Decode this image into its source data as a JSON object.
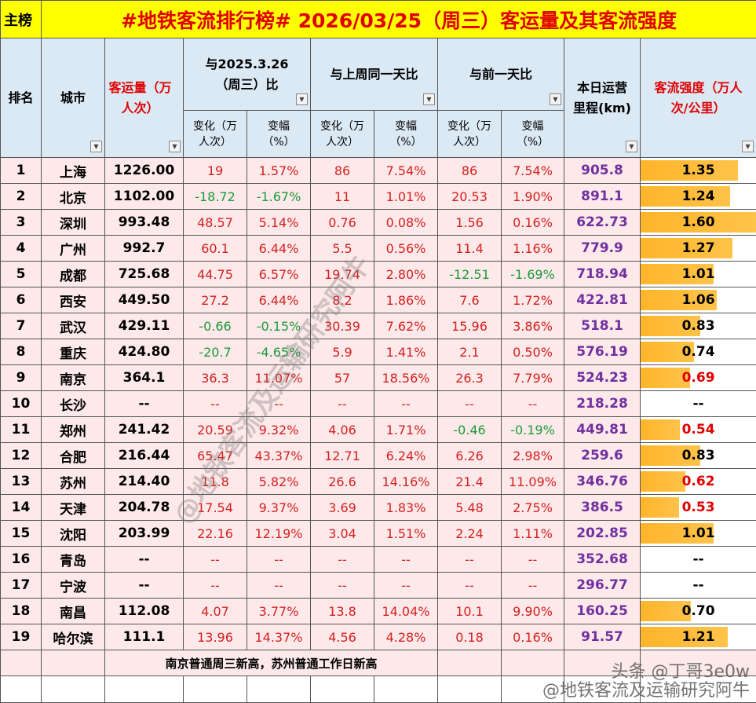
{
  "header": {
    "tag": "主榜",
    "title": "#地铁客流排行榜# 2026/03/25（周三）客运量及其客流强度"
  },
  "table": {
    "columns": {
      "rank": "排名",
      "city": "城市",
      "volume": "客运量（万人次）",
      "vs_year": "与2025.3.26（周三）比",
      "vs_week": "与上周同一天比",
      "vs_day": "与前一天比",
      "mileage": "本日运营里程(km)",
      "intensity": "客流强度（万人次/公里）"
    },
    "subcolumns": [
      "变化（万人次）",
      "变幅（%）",
      "变化（万人次）",
      "变幅（%）",
      "变化（万人次）",
      "变幅（%）"
    ],
    "rows": [
      [
        "1",
        "上海",
        "1226.00",
        "19",
        "1.57%",
        "86",
        "7.54%",
        "86",
        "7.54%",
        "905.8",
        "1.35"
      ],
      [
        "2",
        "北京",
        "1102.00",
        "-18.72",
        "-1.67%",
        "11",
        "1.01%",
        "20.53",
        "1.90%",
        "891.1",
        "1.24"
      ],
      [
        "3",
        "深圳",
        "993.48",
        "48.57",
        "5.14%",
        "0.76",
        "0.08%",
        "1.56",
        "0.16%",
        "622.73",
        "1.60"
      ],
      [
        "4",
        "广州",
        "992.7",
        "60.1",
        "6.44%",
        "5.5",
        "0.56%",
        "11.4",
        "1.16%",
        "779.9",
        "1.27"
      ],
      [
        "5",
        "成都",
        "725.68",
        "44.75",
        "6.57%",
        "19.74",
        "2.80%",
        "-12.51",
        "-1.69%",
        "718.94",
        "1.01"
      ],
      [
        "6",
        "西安",
        "449.50",
        "27.2",
        "6.44%",
        "8.2",
        "1.86%",
        "7.6",
        "1.72%",
        "422.81",
        "1.06"
      ],
      [
        "7",
        "武汉",
        "429.11",
        "-0.66",
        "-0.15%",
        "30.39",
        "7.62%",
        "15.96",
        "3.86%",
        "518.1",
        "0.83"
      ],
      [
        "8",
        "重庆",
        "424.80",
        "-20.7",
        "-4.65%",
        "5.9",
        "1.41%",
        "2.1",
        "0.50%",
        "576.19",
        "0.74"
      ],
      [
        "9",
        "南京",
        "364.1",
        "36.3",
        "11.07%",
        "57",
        "18.56%",
        "26.3",
        "7.79%",
        "524.23",
        "0.69"
      ],
      [
        "10",
        "长沙",
        "--",
        "--",
        "--",
        "--",
        "--",
        "--",
        "--",
        "218.28",
        "--"
      ],
      [
        "11",
        "郑州",
        "241.42",
        "20.59",
        "9.32%",
        "4.06",
        "1.71%",
        "-0.46",
        "-0.19%",
        "449.81",
        "0.54"
      ],
      [
        "12",
        "合肥",
        "216.44",
        "65.47",
        "43.37%",
        "12.71",
        "6.24%",
        "6.26",
        "2.98%",
        "259.6",
        "0.83"
      ],
      [
        "13",
        "苏州",
        "214.40",
        "11.8",
        "5.82%",
        "26.6",
        "14.16%",
        "21.4",
        "11.09%",
        "346.76",
        "0.62"
      ],
      [
        "14",
        "天津",
        "204.78",
        "17.54",
        "9.37%",
        "3.69",
        "1.83%",
        "5.48",
        "2.75%",
        "386.5",
        "0.53"
      ],
      [
        "15",
        "沈阳",
        "203.99",
        "22.16",
        "12.19%",
        "3.04",
        "1.51%",
        "2.24",
        "1.11%",
        "202.85",
        "1.01"
      ],
      [
        "16",
        "青岛",
        "--",
        "--",
        "--",
        "--",
        "--",
        "--",
        "--",
        "352.68",
        "--"
      ],
      [
        "17",
        "宁波",
        "--",
        "--",
        "--",
        "--",
        "--",
        "--",
        "--",
        "296.77",
        "--"
      ],
      [
        "18",
        "南昌",
        "112.08",
        "4.07",
        "3.77%",
        "13.8",
        "14.04%",
        "10.1",
        "9.90%",
        "160.25",
        "0.70"
      ],
      [
        "19",
        "哈尔滨",
        "111.1",
        "13.96",
        "14.37%",
        "4.56",
        "4.28%",
        "0.18",
        "0.16%",
        "91.57",
        "1.21"
      ]
    ],
    "note": "南京普通周三新高，苏州普通工作日新高"
  },
  "watermarks": {
    "source": "头条 @丁哥3e0w",
    "account": "@地铁客流及运输研究阿牛"
  }
}
